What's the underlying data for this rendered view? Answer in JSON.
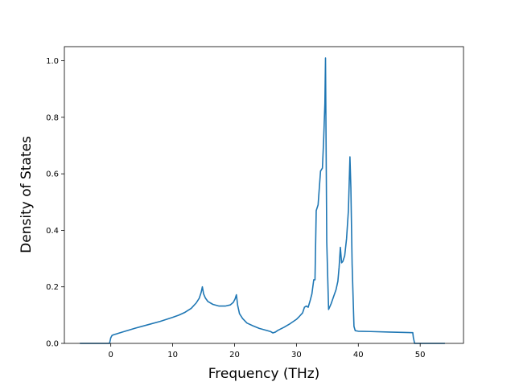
{
  "chart_data": {
    "type": "line",
    "title": "",
    "xlabel": "Frequency (THz)",
    "ylabel": "Density of States",
    "xlim": [
      -7.5,
      57
    ],
    "ylim": [
      0.0,
      1.05
    ],
    "xticks": [
      0,
      10,
      20,
      30,
      40,
      50
    ],
    "yticks": [
      0.0,
      0.2,
      0.4,
      0.6,
      0.8,
      1.0
    ],
    "xtick_labels": [
      "0",
      "10",
      "20",
      "30",
      "40",
      "50"
    ],
    "ytick_labels": [
      "0.0",
      "0.2",
      "0.4",
      "0.6",
      "0.8",
      "1.0"
    ],
    "grid": false,
    "line_color": "#1f77b4",
    "series": [
      {
        "x": [
          -5,
          -0.2,
          0,
          0.2,
          0.5,
          1,
          2,
          4,
          6,
          8,
          10,
          11,
          12,
          13,
          13.8,
          14.3,
          14.6,
          14.8,
          15.0,
          15.3,
          15.7,
          16.5,
          17.5,
          18.5,
          19.3,
          19.8,
          20.1,
          20.3,
          20.5,
          20.8,
          21.3,
          22,
          23,
          24,
          25,
          25.8,
          26.2,
          26.6,
          27,
          28,
          29,
          30,
          30.5,
          31,
          31.3,
          31.6,
          31.9,
          32.2,
          32.5,
          32.8,
          33.0,
          33.2,
          33.5,
          33.9,
          34.2,
          34.4,
          34.6,
          34.7,
          34.9,
          35.2,
          35.6,
          36.0,
          36.4,
          36.7,
          36.9,
          37.1,
          37.3,
          37.5,
          37.8,
          38.1,
          38.4,
          38.65,
          38.8,
          39.0,
          39.3,
          39.5,
          40,
          42,
          45,
          48.8,
          48.9,
          49.1,
          50,
          54
        ],
        "y": [
          0.0,
          0.0,
          0.02,
          0.028,
          0.031,
          0.034,
          0.041,
          0.054,
          0.066,
          0.078,
          0.092,
          0.1,
          0.11,
          0.124,
          0.143,
          0.16,
          0.18,
          0.2,
          0.175,
          0.16,
          0.148,
          0.138,
          0.132,
          0.132,
          0.136,
          0.145,
          0.158,
          0.172,
          0.135,
          0.105,
          0.088,
          0.072,
          0.062,
          0.053,
          0.047,
          0.042,
          0.037,
          0.04,
          0.046,
          0.057,
          0.07,
          0.085,
          0.096,
          0.108,
          0.128,
          0.132,
          0.128,
          0.15,
          0.175,
          0.225,
          0.225,
          0.47,
          0.49,
          0.61,
          0.62,
          0.72,
          0.85,
          1.01,
          0.36,
          0.12,
          0.14,
          0.165,
          0.19,
          0.22,
          0.27,
          0.34,
          0.285,
          0.29,
          0.31,
          0.37,
          0.47,
          0.66,
          0.55,
          0.28,
          0.06,
          0.045,
          0.043,
          0.042,
          0.04,
          0.038,
          0.02,
          0.0,
          0.0,
          0.0
        ]
      }
    ]
  }
}
